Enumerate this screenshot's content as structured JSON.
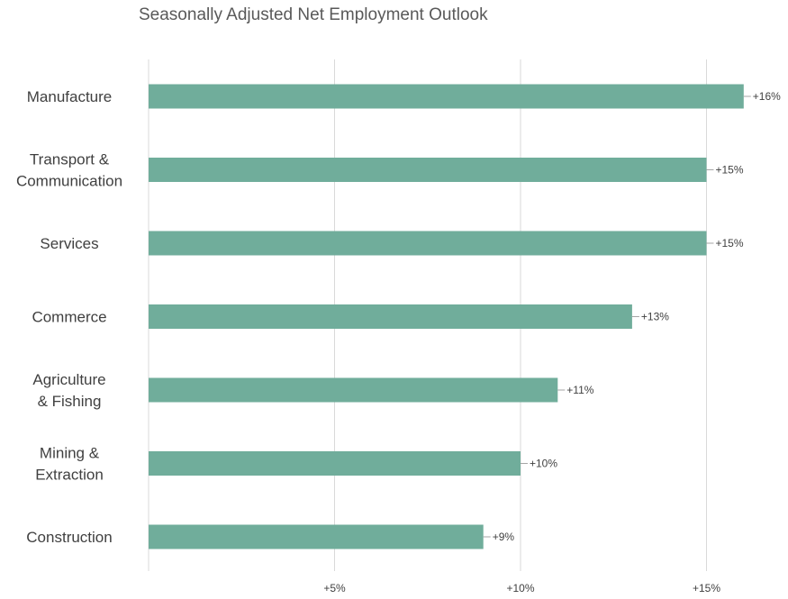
{
  "chart_data": {
    "type": "bar",
    "orientation": "horizontal",
    "title": "Seasonally Adjusted Net Employment Outlook",
    "xlabel": "",
    "ylabel": "",
    "categories": [
      [
        "Manufacture"
      ],
      [
        "Transport &",
        "Communication"
      ],
      [
        "Services"
      ],
      [
        "Commerce"
      ],
      [
        "Agriculture",
        "& Fishing"
      ],
      [
        "Mining &",
        "Extraction"
      ],
      [
        "Construction"
      ]
    ],
    "values": [
      16,
      15,
      15,
      13,
      11,
      10,
      9
    ],
    "data_labels": [
      "+16%",
      "+15%",
      "+15%",
      "+13%",
      "+11%",
      "+10%",
      "+9%"
    ],
    "xlim": [
      0,
      17
    ],
    "x_ticks": [
      5,
      10,
      15
    ],
    "x_tick_labels": [
      "+5%",
      "+10%",
      "+15%"
    ],
    "grid": "vertical",
    "legend": "none",
    "bar_color": "#70ad9b",
    "grid_color": "#d9d9d9"
  }
}
